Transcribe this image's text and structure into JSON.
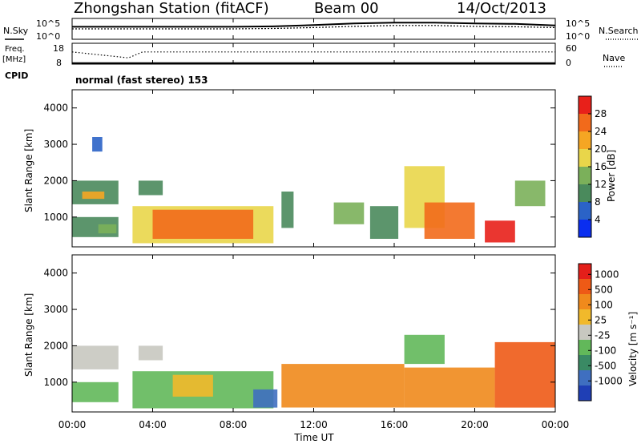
{
  "header": {
    "station": "Zhongshan Station (fitACF)",
    "beam": "Beam 00",
    "date": "14/Oct/2013"
  },
  "strip_panels": {
    "nsky_label": "N.Sky",
    "nsearch_label": "N.Search",
    "noise_ticks": [
      "10^5",
      "10^0"
    ],
    "freq_label_1": "Freq.",
    "freq_label_2": "[MHz]",
    "freq_ticks": [
      "18",
      "8"
    ],
    "nave_label": "Nave",
    "nave_ticks": [
      "60",
      "0"
    ],
    "cpid_label": "CPID",
    "cpid_value": "normal (fast stereo) 153"
  },
  "axes": {
    "ylabel": "Slant Range [km]",
    "yticks": [
      "4000",
      "3000",
      "2000",
      "1000"
    ],
    "xlabel": "Time UT",
    "xticks": [
      "00:00",
      "04:00",
      "08:00",
      "12:00",
      "16:00",
      "20:00",
      "00:00"
    ]
  },
  "colorbars": {
    "power": {
      "label": "Power [dB]",
      "ticks": [
        "28",
        "24",
        "20",
        "16",
        "12",
        "8",
        "4"
      ],
      "colors": [
        "#0a2ef0",
        "#2b63c7",
        "#4a8a5c",
        "#7bb05a",
        "#e9d64a",
        "#f5a623",
        "#f26a1b",
        "#e8201a"
      ]
    },
    "velocity": {
      "label": "Velocity [m s⁻¹]",
      "ticks": [
        "1000",
        "500",
        "100",
        "25",
        "-25",
        "-100",
        "-500",
        "-1000"
      ],
      "colors": [
        "#1f3fb5",
        "#3f6fc0",
        "#3a8a64",
        "#62b85a",
        "#c8c8c0",
        "#f1b92b",
        "#f08a1c",
        "#ee5a16",
        "#e41f1a"
      ]
    }
  },
  "colors": {
    "axis": "#000000",
    "accent_white_line": "#ffffff"
  },
  "chart_data": [
    {
      "type": "line",
      "name": "noise",
      "x_range_hours": [
        0,
        24
      ],
      "ylim_log10": [
        0,
        5
      ],
      "series": [
        {
          "name": "N.Sky",
          "x": [
            0,
            2,
            4,
            6,
            8,
            10,
            12,
            14,
            16,
            18,
            20,
            22,
            24
          ],
          "y": [
            3.0,
            3.0,
            3.0,
            3.0,
            3.0,
            3.1,
            3.4,
            3.8,
            4.0,
            4.0,
            3.8,
            3.7,
            3.3
          ]
        },
        {
          "name": "N.Search",
          "x": [
            0,
            2,
            4,
            6,
            8,
            10,
            12,
            14,
            16,
            18,
            20,
            22,
            24
          ],
          "y": [
            2.5,
            2.5,
            2.5,
            2.5,
            2.5,
            2.6,
            2.8,
            3.1,
            3.3,
            3.3,
            3.1,
            3.0,
            2.8
          ]
        }
      ]
    },
    {
      "type": "line",
      "name": "frequency_nave",
      "x_range_hours": [
        0,
        24
      ],
      "series": [
        {
          "name": "Freq.",
          "unit": "MHz",
          "ylim": [
            8,
            18
          ],
          "x": [
            0,
            24
          ],
          "y": [
            8.5,
            8.5
          ]
        },
        {
          "name": "Nave",
          "ylim": [
            0,
            60
          ],
          "x": [
            0,
            2.8,
            3.5,
            24
          ],
          "y": [
            35,
            18,
            35,
            35
          ]
        }
      ]
    },
    {
      "type": "heatmap",
      "name": "power",
      "x_range_hours": [
        0,
        24
      ],
      "ylim": [
        180,
        4500
      ],
      "zlabel": "Power [dB]",
      "zlim": [
        0,
        32
      ],
      "regions": [
        {
          "x": [
            0.0,
            2.3
          ],
          "y": [
            1350,
            2000
          ],
          "z": 11
        },
        {
          "x": [
            0.5,
            1.6
          ],
          "y": [
            1500,
            1700
          ],
          "z": 20
        },
        {
          "x": [
            0.0,
            2.3
          ],
          "y": [
            450,
            1000
          ],
          "z": 8
        },
        {
          "x": [
            1.3,
            2.2
          ],
          "y": [
            550,
            800
          ],
          "z": 14
        },
        {
          "x": [
            1.0,
            1.5
          ],
          "y": [
            2800,
            3200
          ],
          "z": 6
        },
        {
          "x": [
            3.3,
            4.5
          ],
          "y": [
            1600,
            2000
          ],
          "z": 10
        },
        {
          "x": [
            3.0,
            10.0
          ],
          "y": [
            280,
            1300
          ],
          "z": 16
        },
        {
          "x": [
            4.0,
            9.0
          ],
          "y": [
            400,
            1200
          ],
          "z": 27
        },
        {
          "x": [
            10.4,
            11.0
          ],
          "y": [
            700,
            1700
          ],
          "z": 10
        },
        {
          "x": [
            13.0,
            14.5
          ],
          "y": [
            800,
            1400
          ],
          "z": 12
        },
        {
          "x": [
            14.8,
            16.2
          ],
          "y": [
            400,
            1300
          ],
          "z": 9
        },
        {
          "x": [
            16.5,
            18.5
          ],
          "y": [
            700,
            2400
          ],
          "z": 17
        },
        {
          "x": [
            17.5,
            20.0
          ],
          "y": [
            400,
            1400
          ],
          "z": 25
        },
        {
          "x": [
            20.5,
            22.0
          ],
          "y": [
            300,
            900
          ],
          "z": 28
        },
        {
          "x": [
            22.0,
            23.5
          ],
          "y": [
            1300,
            2000
          ],
          "z": 12
        }
      ]
    },
    {
      "type": "heatmap",
      "name": "velocity",
      "x_range_hours": [
        0,
        24
      ],
      "ylim": [
        180,
        4500
      ],
      "zlabel": "Velocity [m s-1]",
      "zlim": [
        -1000,
        1000
      ],
      "regions": [
        {
          "x": [
            0.0,
            2.3
          ],
          "y": [
            1350,
            2000
          ],
          "z": 0
        },
        {
          "x": [
            0.0,
            2.3
          ],
          "y": [
            450,
            1000
          ],
          "z": 200
        },
        {
          "x": [
            3.3,
            4.5
          ],
          "y": [
            1600,
            2000
          ],
          "z": 0
        },
        {
          "x": [
            3.0,
            10.0
          ],
          "y": [
            280,
            1300
          ],
          "z": 150
        },
        {
          "x": [
            5.0,
            7.0
          ],
          "y": [
            600,
            1200
          ],
          "z": -300
        },
        {
          "x": [
            9.0,
            10.2
          ],
          "y": [
            300,
            800
          ],
          "z": 700
        },
        {
          "x": [
            10.4,
            16.5
          ],
          "y": [
            300,
            1500
          ],
          "z": -400
        },
        {
          "x": [
            16.5,
            18.5
          ],
          "y": [
            1500,
            2300
          ],
          "z": 120
        },
        {
          "x": [
            16.5,
            21.0
          ],
          "y": [
            300,
            1400
          ],
          "z": -450
        },
        {
          "x": [
            21.0,
            24.0
          ],
          "y": [
            300,
            2100
          ],
          "z": -600
        }
      ]
    }
  ]
}
